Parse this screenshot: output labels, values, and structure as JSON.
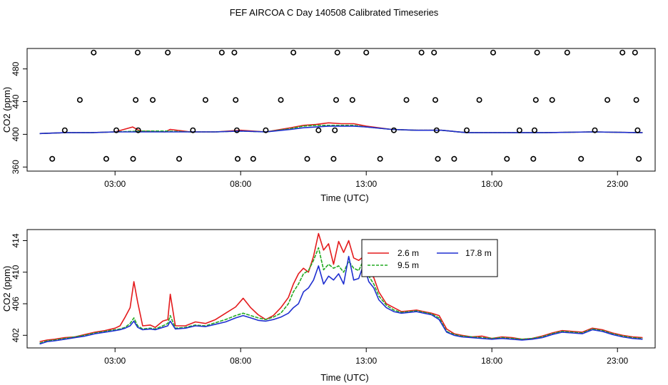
{
  "title": "FEF AIRCOA C  Day 140508  Calibrated Timeseries",
  "chart_data": [
    {
      "type": "scatter",
      "name": "top",
      "xlabel": "Time (UTC)",
      "ylabel": "CO2 (ppm)",
      "xlim": [
        -0.5,
        24.5
      ],
      "ylim": [
        355,
        505
      ],
      "xticks": [
        3,
        8,
        13,
        18,
        23
      ],
      "xtick_labels": [
        "03:00",
        "08:00",
        "13:00",
        "18:00",
        "23:00"
      ],
      "yticks": [
        360,
        400,
        440,
        480
      ],
      "ytick_labels": [
        "360",
        "400",
        "440",
        "480"
      ],
      "markers": [
        {
          "t": 0.5,
          "v": 370
        },
        {
          "t": 1.0,
          "v": 405
        },
        {
          "t": 1.6,
          "v": 442
        },
        {
          "t": 2.15,
          "v": 500
        },
        {
          "t": 2.65,
          "v": 370
        },
        {
          "t": 3.05,
          "v": 405
        },
        {
          "t": 3.72,
          "v": 370
        },
        {
          "t": 3.82,
          "v": 442
        },
        {
          "t": 3.9,
          "v": 500
        },
        {
          "t": 3.92,
          "v": 405
        },
        {
          "t": 4.5,
          "v": 442
        },
        {
          "t": 5.1,
          "v": 500
        },
        {
          "t": 5.55,
          "v": 370
        },
        {
          "t": 6.1,
          "v": 405
        },
        {
          "t": 6.6,
          "v": 442
        },
        {
          "t": 7.25,
          "v": 500
        },
        {
          "t": 7.75,
          "v": 500
        },
        {
          "t": 7.8,
          "v": 442
        },
        {
          "t": 7.85,
          "v": 405
        },
        {
          "t": 7.88,
          "v": 370
        },
        {
          "t": 8.5,
          "v": 370
        },
        {
          "t": 9.0,
          "v": 405
        },
        {
          "t": 9.6,
          "v": 442
        },
        {
          "t": 10.1,
          "v": 500
        },
        {
          "t": 10.65,
          "v": 370
        },
        {
          "t": 11.1,
          "v": 405
        },
        {
          "t": 11.7,
          "v": 370
        },
        {
          "t": 11.75,
          "v": 405
        },
        {
          "t": 11.8,
          "v": 442
        },
        {
          "t": 11.85,
          "v": 500
        },
        {
          "t": 12.45,
          "v": 442
        },
        {
          "t": 13.0,
          "v": 500
        },
        {
          "t": 13.55,
          "v": 370
        },
        {
          "t": 14.1,
          "v": 405
        },
        {
          "t": 14.6,
          "v": 442
        },
        {
          "t": 15.2,
          "v": 500
        },
        {
          "t": 15.7,
          "v": 500
        },
        {
          "t": 15.75,
          "v": 442
        },
        {
          "t": 15.8,
          "v": 405
        },
        {
          "t": 15.85,
          "v": 370
        },
        {
          "t": 16.5,
          "v": 370
        },
        {
          "t": 17.0,
          "v": 405
        },
        {
          "t": 17.5,
          "v": 442
        },
        {
          "t": 18.05,
          "v": 500
        },
        {
          "t": 18.6,
          "v": 370
        },
        {
          "t": 19.1,
          "v": 405
        },
        {
          "t": 19.65,
          "v": 370
        },
        {
          "t": 19.7,
          "v": 405
        },
        {
          "t": 19.75,
          "v": 442
        },
        {
          "t": 19.8,
          "v": 500
        },
        {
          "t": 20.4,
          "v": 442
        },
        {
          "t": 21.0,
          "v": 500
        },
        {
          "t": 21.55,
          "v": 370
        },
        {
          "t": 22.1,
          "v": 405
        },
        {
          "t": 22.6,
          "v": 442
        },
        {
          "t": 23.2,
          "v": 500
        },
        {
          "t": 23.7,
          "v": 500
        },
        {
          "t": 23.75,
          "v": 442
        },
        {
          "t": 23.8,
          "v": 405
        },
        {
          "t": 23.85,
          "v": 370
        }
      ],
      "series": [
        {
          "name": "2.6 m",
          "color": "#e41a1c",
          "t": [
            0,
            1,
            2,
            3,
            3.7,
            4,
            5,
            5.2,
            6,
            7,
            8,
            9,
            10,
            10.5,
            11,
            11.5,
            12,
            12.5,
            13,
            14,
            15,
            16,
            17,
            18,
            20,
            22,
            24
          ],
          "v": [
            401,
            402,
            402,
            403,
            409,
            404,
            403,
            406,
            403,
            403,
            405,
            403,
            408,
            411,
            412,
            414,
            413,
            413,
            410,
            406,
            405,
            405,
            402,
            402,
            402,
            403,
            402
          ]
        },
        {
          "name": "9.5 m",
          "color": "#22aa22",
          "t": [
            0,
            1,
            2,
            3,
            4,
            5,
            6,
            7,
            8,
            9,
            10,
            10.5,
            11,
            11.5,
            12,
            12.5,
            13,
            14,
            15,
            16,
            17,
            18,
            20,
            22,
            24
          ],
          "v": [
            401,
            402,
            402,
            403,
            404,
            404,
            403,
            403,
            404,
            403,
            407,
            410,
            411,
            411,
            411,
            411,
            409,
            406,
            405,
            405,
            402,
            402,
            402,
            403,
            402
          ]
        },
        {
          "name": "17.8 m",
          "color": "#1f2fd0",
          "t": [
            0,
            1,
            2,
            3,
            4,
            5,
            6,
            7,
            8,
            9,
            10,
            10.5,
            11,
            11.5,
            12,
            12.5,
            13,
            14,
            15,
            16,
            17,
            18,
            20,
            22,
            24
          ],
          "v": [
            401,
            402,
            402,
            403,
            403,
            403,
            403,
            403,
            404,
            403,
            406,
            408,
            409,
            410,
            410,
            410,
            409,
            406,
            405,
            405,
            402,
            402,
            402,
            403,
            402
          ]
        }
      ]
    },
    {
      "type": "line",
      "name": "bottom",
      "xlabel": "Time (UTC)",
      "ylabel": "CO2 (ppm)",
      "xlim": [
        -0.5,
        24.5
      ],
      "ylim": [
        400.4,
        415.4
      ],
      "xticks": [
        3,
        8,
        13,
        18,
        23
      ],
      "xtick_labels": [
        "03:00",
        "08:00",
        "13:00",
        "18:00",
        "23:00"
      ],
      "yticks": [
        402,
        406,
        410,
        414
      ],
      "ytick_labels": [
        "402",
        "406",
        "410",
        "414"
      ],
      "legend": {
        "position": "top-right-inner",
        "entries": [
          "2.6 m",
          "17.8 m",
          "9.5 m"
        ]
      },
      "series": [
        {
          "name": "2.6 m",
          "color": "#e41a1c",
          "t": [
            0,
            0.3,
            0.6,
            1.0,
            1.4,
            1.8,
            2.2,
            2.6,
            3.0,
            3.2,
            3.4,
            3.6,
            3.75,
            3.9,
            4.1,
            4.4,
            4.6,
            4.9,
            5.1,
            5.2,
            5.4,
            5.8,
            6.2,
            6.6,
            7.0,
            7.4,
            7.8,
            8.1,
            8.4,
            8.7,
            9.0,
            9.3,
            9.6,
            9.9,
            10.1,
            10.3,
            10.5,
            10.7,
            10.9,
            11.1,
            11.3,
            11.5,
            11.7,
            11.9,
            12.1,
            12.3,
            12.5,
            12.7,
            12.9,
            13.1,
            13.3,
            13.5,
            13.8,
            14.1,
            14.4,
            14.7,
            15.0,
            15.3,
            15.6,
            15.9,
            16.2,
            16.5,
            16.8,
            17.2,
            17.6,
            18.0,
            18.4,
            18.8,
            19.2,
            19.6,
            20.0,
            20.4,
            20.8,
            21.2,
            21.6,
            22.0,
            22.4,
            22.8,
            23.2,
            23.6,
            24.0
          ],
          "v": [
            401.2,
            401.4,
            401.5,
            401.7,
            401.8,
            402.1,
            402.4,
            402.6,
            402.9,
            403.2,
            404.3,
            405.5,
            408.8,
            406.2,
            403.2,
            403.3,
            403.0,
            403.8,
            404.0,
            407.2,
            403.2,
            403.2,
            403.7,
            403.5,
            404.0,
            404.8,
            405.6,
            406.7,
            405.5,
            404.6,
            404.0,
            404.5,
            405.5,
            406.8,
            408.5,
            409.8,
            410.5,
            410.0,
            412.0,
            414.9,
            412.8,
            413.6,
            411.0,
            413.9,
            412.5,
            414.0,
            411.8,
            411.5,
            412.0,
            410.2,
            409.3,
            407.5,
            406.0,
            405.5,
            405.0,
            405.1,
            405.2,
            405.0,
            404.8,
            404.5,
            402.8,
            402.2,
            402.0,
            401.8,
            401.9,
            401.6,
            401.8,
            401.7,
            401.5,
            401.6,
            401.9,
            402.3,
            402.6,
            402.5,
            402.4,
            402.9,
            402.7,
            402.3,
            402.0,
            401.8,
            401.7
          ]
        },
        {
          "name": "9.5 m",
          "color": "#22aa22",
          "t": [
            0,
            0.3,
            0.6,
            1.0,
            1.4,
            1.8,
            2.2,
            2.6,
            3.0,
            3.2,
            3.4,
            3.6,
            3.75,
            3.9,
            4.1,
            4.4,
            4.6,
            4.9,
            5.1,
            5.2,
            5.4,
            5.8,
            6.2,
            6.6,
            7.0,
            7.4,
            7.8,
            8.1,
            8.4,
            8.7,
            9.0,
            9.3,
            9.6,
            9.9,
            10.1,
            10.3,
            10.5,
            10.7,
            10.9,
            11.1,
            11.3,
            11.5,
            11.7,
            11.9,
            12.1,
            12.3,
            12.5,
            12.7,
            12.9,
            13.1,
            13.3,
            13.5,
            13.8,
            14.1,
            14.4,
            14.7,
            15.0,
            15.3,
            15.6,
            15.9,
            16.2,
            16.5,
            16.8,
            17.2,
            17.6,
            18.0,
            18.4,
            18.8,
            19.2,
            19.6,
            20.0,
            20.4,
            20.8,
            21.2,
            21.6,
            22.0,
            22.4,
            22.8,
            23.2,
            23.6,
            24.0
          ],
          "v": [
            401.0,
            401.3,
            401.4,
            401.6,
            401.8,
            402.0,
            402.3,
            402.5,
            402.7,
            402.8,
            403.0,
            403.5,
            404.2,
            403.2,
            402.8,
            402.9,
            402.8,
            403.2,
            403.5,
            404.5,
            402.9,
            403.0,
            403.3,
            403.2,
            403.6,
            404.0,
            404.5,
            404.8,
            404.5,
            404.2,
            404.0,
            404.3,
            404.8,
            406.0,
            407.5,
            408.5,
            409.8,
            410.2,
            411.5,
            413.1,
            410.3,
            411.0,
            410.5,
            410.8,
            410.0,
            411.4,
            410.5,
            410.2,
            411.6,
            409.5,
            408.5,
            407.0,
            405.8,
            405.2,
            404.9,
            405.0,
            405.1,
            404.9,
            404.7,
            404.2,
            402.5,
            402.1,
            401.9,
            401.8,
            401.7,
            401.6,
            401.7,
            401.6,
            401.5,
            401.6,
            401.8,
            402.2,
            402.5,
            402.4,
            402.3,
            402.8,
            402.6,
            402.2,
            401.9,
            401.7,
            401.6
          ]
        },
        {
          "name": "17.8 m",
          "color": "#1f2fd0",
          "t": [
            0,
            0.3,
            0.6,
            1.0,
            1.4,
            1.8,
            2.2,
            2.6,
            3.0,
            3.2,
            3.4,
            3.6,
            3.75,
            3.9,
            4.1,
            4.4,
            4.6,
            4.9,
            5.1,
            5.2,
            5.4,
            5.8,
            6.2,
            6.6,
            7.0,
            7.4,
            7.8,
            8.1,
            8.4,
            8.7,
            9.0,
            9.3,
            9.6,
            9.9,
            10.1,
            10.3,
            10.5,
            10.7,
            10.9,
            11.1,
            11.3,
            11.5,
            11.7,
            11.9,
            12.1,
            12.3,
            12.5,
            12.7,
            12.9,
            13.1,
            13.3,
            13.5,
            13.8,
            14.1,
            14.4,
            14.7,
            15.0,
            15.3,
            15.6,
            15.9,
            16.2,
            16.5,
            16.8,
            17.2,
            17.6,
            18.0,
            18.4,
            18.8,
            19.2,
            19.6,
            20.0,
            20.4,
            20.8,
            21.2,
            21.6,
            22.0,
            22.4,
            22.8,
            23.2,
            23.6,
            24.0
          ],
          "v": [
            400.9,
            401.2,
            401.3,
            401.5,
            401.7,
            401.9,
            402.2,
            402.4,
            402.6,
            402.7,
            402.9,
            403.2,
            403.8,
            403.0,
            402.7,
            402.8,
            402.7,
            403.0,
            403.2,
            403.8,
            402.8,
            402.9,
            403.2,
            403.1,
            403.4,
            403.7,
            404.2,
            404.5,
            404.2,
            403.9,
            403.8,
            404.0,
            404.3,
            404.8,
            405.5,
            406.0,
            407.5,
            408.0,
            409.0,
            410.8,
            408.5,
            409.5,
            409.0,
            409.8,
            408.5,
            412.0,
            409.0,
            409.2,
            411.0,
            408.8,
            408.0,
            406.5,
            405.5,
            405.0,
            404.8,
            404.9,
            405.0,
            404.8,
            404.6,
            404.0,
            402.4,
            402.0,
            401.8,
            401.7,
            401.6,
            401.5,
            401.6,
            401.5,
            401.4,
            401.5,
            401.7,
            402.1,
            402.4,
            402.3,
            402.2,
            402.7,
            402.5,
            402.1,
            401.8,
            401.6,
            401.5
          ]
        }
      ]
    }
  ]
}
